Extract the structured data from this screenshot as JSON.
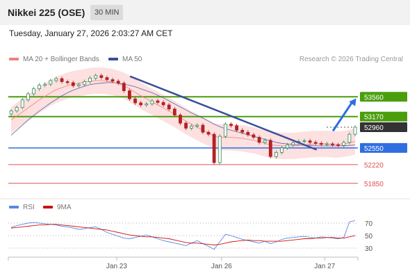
{
  "header": {
    "title": "Nikkei 225 (OSE)",
    "timeframe": "30 MIN"
  },
  "datetime": "Tuesday, January 27, 2026 2:03:27 AM CET",
  "legend": {
    "item1": "MA 20 + Bollinger Bands",
    "item2": "MA 50",
    "credit": "Research © 2026 Trading Central"
  },
  "rsi_legend": {
    "item1": "RSI",
    "item2": "9MA"
  },
  "colors": {
    "ma20": "#f08080",
    "bollinger_fill": "#fde0e0",
    "ma50": "#3a4f9a",
    "resistance": "#4a9e0c",
    "support_blue": "#2f6ee0",
    "support_red": "#e05050",
    "current": "#333333",
    "rsi": "#5b86e0",
    "rsi_ma": "#cc1111",
    "bull": "#2e8b57",
    "bear": "#b22222"
  },
  "chart_data": [
    {
      "type": "candlestick",
      "title": "",
      "x_ticks": [
        "Jan 23",
        "Jan 26",
        "Jan 27"
      ],
      "ylim": [
        51600,
        54100
      ],
      "price_levels": [
        {
          "value": 53560,
          "label": "53560",
          "kind": "resistance"
        },
        {
          "value": 53170,
          "label": "53170",
          "kind": "resistance"
        },
        {
          "value": 52960,
          "label": "52960",
          "kind": "current"
        },
        {
          "value": 52550,
          "label": "52550",
          "kind": "support-pivot"
        },
        {
          "value": 52220,
          "label": "52220",
          "kind": "support"
        },
        {
          "value": 51850,
          "label": "51850",
          "kind": "support"
        }
      ],
      "trendline": {
        "from": [
          0.35,
          53960
        ],
        "to": [
          0.88,
          52520
        ]
      },
      "forecast_arrow": {
        "from": [
          0.93,
          52900
        ],
        "to": [
          0.995,
          53530
        ]
      },
      "close": [
        53280,
        53350,
        53500,
        53620,
        53720,
        53790,
        53810,
        53880,
        53920,
        53860,
        53840,
        53780,
        53800,
        53860,
        53930,
        53980,
        53940,
        53900,
        53870,
        53830,
        53680,
        53520,
        53440,
        53400,
        53420,
        53480,
        53450,
        53400,
        53320,
        53200,
        53040,
        52940,
        52980,
        53000,
        52860,
        52820,
        52260,
        52780,
        53020,
        52990,
        52900,
        52860,
        52810,
        52760,
        52660,
        52700,
        52380,
        52460,
        52550,
        52610,
        52650,
        52680,
        52690,
        52660,
        52640,
        52620,
        52630,
        52610,
        52600,
        52660,
        52820,
        52960
      ],
      "ma20": [
        53100,
        53180,
        53260,
        53340,
        53420,
        53500,
        53570,
        53640,
        53700,
        53740,
        53780,
        53810,
        53830,
        53850,
        53870,
        53880,
        53880,
        53870,
        53850,
        53820,
        53780,
        53720,
        53650,
        53580,
        53520,
        53460,
        53400,
        53340,
        53280,
        53220,
        53150,
        53080,
        53020,
        52960,
        52900,
        52850,
        52780,
        52760,
        52760,
        52760,
        52750,
        52740,
        52720,
        52700,
        52670,
        52640,
        52610,
        52600,
        52590,
        52590,
        52590,
        52600,
        52610,
        52620,
        52630,
        52630,
        52630,
        52620,
        52620,
        52630,
        52650,
        52680
      ],
      "ma50": [
        52800,
        52900,
        53000,
        53100,
        53190,
        53280,
        53360,
        53440,
        53510,
        53580,
        53640,
        53690,
        53730,
        53770,
        53800,
        53820,
        53830,
        53840,
        53840,
        53830,
        53810,
        53790,
        53760,
        53720,
        53680,
        53640,
        53590,
        53540,
        53480,
        53420,
        53360,
        53300,
        53240,
        53190,
        53140,
        53080,
        53020,
        52970,
        52930,
        52900,
        52870,
        52840,
        52810,
        52780,
        52750,
        52720,
        52690,
        52660,
        52640,
        52630,
        52620,
        52610,
        52600,
        52600,
        52590,
        52590,
        52590,
        52590,
        52590,
        52590,
        52600,
        52610
      ],
      "bb_width": 260
    },
    {
      "type": "line",
      "title": "",
      "y_ticks": [
        "70",
        "50",
        "30"
      ],
      "ylim": [
        20,
        80
      ],
      "series": [
        {
          "name": "RSI",
          "values": [
            63,
            66,
            68,
            70,
            71,
            70,
            69,
            68,
            67,
            65,
            64,
            62,
            60,
            61,
            63,
            64,
            60,
            55,
            52,
            49,
            46,
            45,
            47,
            49,
            51,
            48,
            45,
            42,
            40,
            38,
            36,
            34,
            38,
            42,
            37,
            33,
            28,
            40,
            52,
            50,
            47,
            44,
            42,
            40,
            38,
            41,
            37,
            40,
            44,
            46,
            47,
            48,
            49,
            47,
            46,
            48,
            47,
            46,
            45,
            47,
            72,
            74
          ]
        },
        {
          "name": "9MA",
          "values": [
            62,
            63,
            64,
            65,
            66,
            67,
            67,
            68,
            68,
            67,
            66,
            65,
            64,
            63,
            62,
            61,
            60,
            59,
            57,
            55,
            53,
            51,
            50,
            49,
            48,
            48,
            47,
            46,
            45,
            43,
            41,
            39,
            38,
            38,
            37,
            36,
            35,
            36,
            38,
            40,
            41,
            42,
            43,
            42,
            42,
            41,
            41,
            41,
            41,
            42,
            43,
            44,
            45,
            45,
            46,
            46,
            47,
            47,
            46,
            46,
            48,
            50
          ]
        }
      ]
    }
  ]
}
